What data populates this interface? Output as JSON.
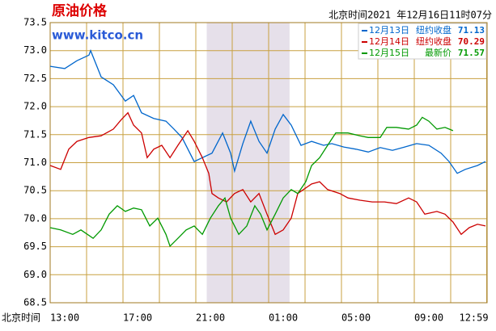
{
  "chart_data": {
    "type": "line",
    "title": "原油价格",
    "subtitle": "www.kitco.cn",
    "timestamp": "北京时间2021 年12月16日11时07分",
    "xlabel": "北京时间",
    "xlim": [
      0,
      24
    ],
    "ylim": [
      68.5,
      73.5
    ],
    "yticks": [
      73.5,
      {
        "value": 73,
        "label": "73.0"
      },
      72.5,
      {
        "value": 72,
        "label": "72.0"
      },
      71.5,
      {
        "value": 71,
        "label": "71.0"
      },
      70.5,
      {
        "value": 70,
        "label": "70.0"
      },
      69.5,
      {
        "value": 69,
        "label": "69.0"
      },
      68.5
    ],
    "xticks": [
      {
        "value": 0,
        "label": "13:00"
      },
      {
        "value": 2,
        "label": null
      },
      {
        "value": 4,
        "label": "17:00"
      },
      {
        "value": 6,
        "label": null
      },
      {
        "value": 8,
        "label": "21:00"
      },
      {
        "value": 10,
        "label": null
      },
      {
        "value": 12,
        "label": "01:00"
      },
      {
        "value": 14,
        "label": null
      },
      {
        "value": 16,
        "label": "05:00"
      },
      {
        "value": 18,
        "label": null
      },
      {
        "value": 20,
        "label": "09:00"
      },
      {
        "value": 22,
        "label": null
      },
      {
        "value": 23.98,
        "label": "12:59"
      }
    ],
    "grid": true,
    "shaded_range": [
      8.6,
      13.15
    ],
    "legend": "upper right",
    "series": [
      {
        "name": "12月13日",
        "legend_text": "纽约收盘",
        "latest": 71.13,
        "color": "#0066cc",
        "x": [
          0,
          0.8,
          1.47,
          2.13,
          2.22,
          2.8,
          3.47,
          4.13,
          4.58,
          5.02,
          5.69,
          6.36,
          6.8,
          7.24,
          7.91,
          8.36,
          8.89,
          9.47,
          9.91,
          10.13,
          10.58,
          11.02,
          11.47,
          11.91,
          12.36,
          12.8,
          13.24,
          13.78,
          14.36,
          15.02,
          15.47,
          16.13,
          16.8,
          17.47,
          18.13,
          18.8,
          19.47,
          20.13,
          20.8,
          21.47,
          21.91,
          22.36,
          22.8,
          23.47,
          23.91
        ],
        "values": [
          72.72,
          72.68,
          72.82,
          72.92,
          73.0,
          72.53,
          72.39,
          72.1,
          72.2,
          71.89,
          71.79,
          71.74,
          71.6,
          71.45,
          71.02,
          71.09,
          71.17,
          71.53,
          71.17,
          70.85,
          71.34,
          71.74,
          71.38,
          71.17,
          71.6,
          71.86,
          71.67,
          71.31,
          71.38,
          71.31,
          71.34,
          71.28,
          71.24,
          71.19,
          71.27,
          71.22,
          71.28,
          71.34,
          71.31,
          71.17,
          71.02,
          70.81,
          70.88,
          70.95,
          71.02
        ]
      },
      {
        "name": "12月14日",
        "legend_text": "纽约收盘",
        "latest": 70.29,
        "color": "#cc0000",
        "x": [
          0,
          0.58,
          1.02,
          1.47,
          2.13,
          2.8,
          3.47,
          3.91,
          4.27,
          4.58,
          5.02,
          5.33,
          5.69,
          6.13,
          6.58,
          7.02,
          7.56,
          7.91,
          8.36,
          8.71,
          8.89,
          9.24,
          9.69,
          10.13,
          10.58,
          11.02,
          11.47,
          11.91,
          12.36,
          12.8,
          13.24,
          13.6,
          13.91,
          14.36,
          14.8,
          15.24,
          15.91,
          16.36,
          17.02,
          17.69,
          18.36,
          19.02,
          19.69,
          20.13,
          20.58,
          21.24,
          21.69,
          22.13,
          22.58,
          23.02,
          23.47,
          23.91
        ],
        "values": [
          70.95,
          70.88,
          71.24,
          71.38,
          71.45,
          71.48,
          71.6,
          71.77,
          71.89,
          71.67,
          71.53,
          71.09,
          71.24,
          71.31,
          71.09,
          71.31,
          71.57,
          71.38,
          71.09,
          70.81,
          70.45,
          70.37,
          70.3,
          70.45,
          70.52,
          70.3,
          70.45,
          70.08,
          69.72,
          69.8,
          70.01,
          70.45,
          70.52,
          70.62,
          70.66,
          70.52,
          70.45,
          70.37,
          70.33,
          70.3,
          70.3,
          70.27,
          70.37,
          70.3,
          70.08,
          70.13,
          70.08,
          69.94,
          69.72,
          69.84,
          69.9,
          69.87
        ]
      },
      {
        "name": "12月15日",
        "legend_text": "最新价",
        "latest": 71.57,
        "color": "#009900",
        "x": [
          0,
          0.58,
          1.24,
          1.69,
          2.36,
          2.8,
          3.24,
          3.69,
          4.13,
          4.58,
          5.02,
          5.47,
          5.91,
          6.36,
          6.58,
          7.02,
          7.47,
          7.91,
          8.36,
          8.8,
          9.24,
          9.6,
          9.91,
          10.36,
          10.8,
          11.24,
          11.56,
          11.91,
          12.36,
          12.8,
          13.24,
          13.6,
          14.04,
          14.36,
          14.8,
          15.24,
          15.69,
          16.36,
          17.02,
          17.47,
          18.13,
          18.49,
          19.02,
          19.69,
          20.13,
          20.44,
          20.8,
          21.24,
          21.69,
          22.13
        ],
        "values": [
          69.84,
          69.8,
          69.72,
          69.8,
          69.65,
          69.8,
          70.08,
          70.23,
          70.13,
          70.19,
          70.16,
          69.87,
          70.01,
          69.72,
          69.51,
          69.65,
          69.8,
          69.87,
          69.72,
          70.01,
          70.23,
          70.37,
          70.01,
          69.72,
          69.87,
          70.23,
          70.08,
          69.8,
          70.08,
          70.37,
          70.52,
          70.45,
          70.66,
          70.95,
          71.09,
          71.31,
          71.53,
          71.53,
          71.48,
          71.45,
          71.45,
          71.63,
          71.63,
          71.6,
          71.67,
          71.81,
          71.74,
          71.6,
          71.63,
          71.57
        ]
      }
    ]
  }
}
